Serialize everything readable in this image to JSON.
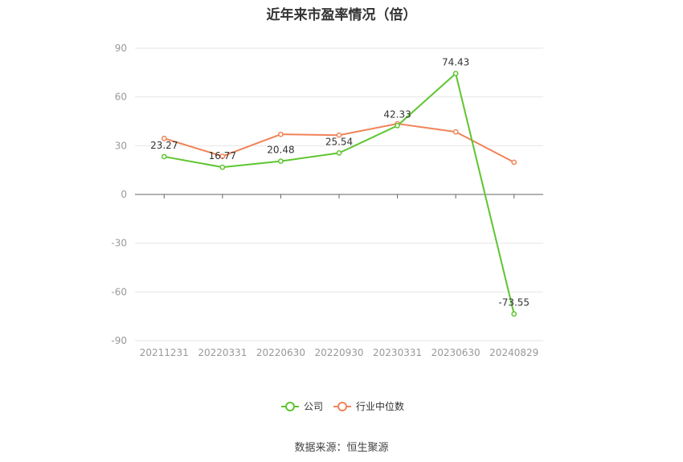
{
  "chart_data": {
    "type": "line",
    "title": "近年来市盈率情况（倍）",
    "categories": [
      "20211231",
      "20220331",
      "20220630",
      "20220930",
      "20230331",
      "20230630",
      "20240829"
    ],
    "series": [
      {
        "name": "公司",
        "color": "#5ec52f",
        "values": [
          23.27,
          16.77,
          20.48,
          25.54,
          42.33,
          74.43,
          -73.55
        ],
        "labels": [
          "23.27",
          "16.77",
          "20.48",
          "25.54",
          "42.33",
          "74.43",
          "-73.55"
        ]
      },
      {
        "name": "行业中位数",
        "color": "#f08459",
        "values": [
          34.5,
          23.5,
          37.0,
          36.5,
          43.5,
          38.5,
          19.8
        ]
      }
    ],
    "ylim": [
      -90,
      90
    ],
    "yticks": [
      "90",
      "60",
      "30",
      "0",
      "-30",
      "-60",
      "-90"
    ],
    "grid": true,
    "legend": "bottom"
  },
  "source": "数据来源：恒生聚源"
}
